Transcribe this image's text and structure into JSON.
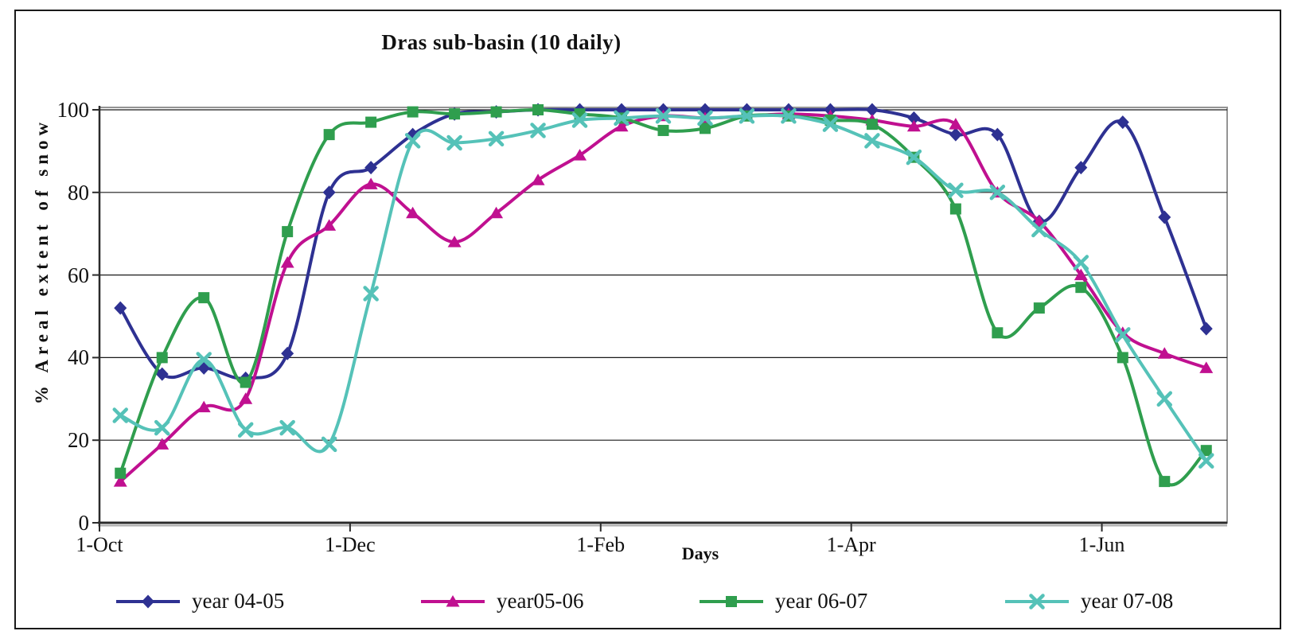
{
  "window": {
    "background": "#ffffff",
    "border_color": "#1a1a1a"
  },
  "chart_data": {
    "type": "line",
    "title": "Dras sub-basin (10 daily)",
    "xlabel": "Days",
    "ylabel": "% Areal extent of snow",
    "ylim": [
      0,
      100
    ],
    "y_ticks": [
      0,
      20,
      40,
      60,
      80,
      100
    ],
    "grid": true,
    "line_style": "smooth",
    "legend_position": "bottom",
    "categories": [
      "1-Oct",
      "11-Oct",
      "21-Oct",
      "1-Nov",
      "11-Nov",
      "21-Nov",
      "1-Dec",
      "11-Dec",
      "21-Dec",
      "1-Jan",
      "11-Jan",
      "21-Jan",
      "1-Feb",
      "11-Feb",
      "21-Feb",
      "1-Mar",
      "11-Mar",
      "21-Mar",
      "1-Apr",
      "11-Apr",
      "21-Apr",
      "1-May",
      "11-May",
      "21-May",
      "1-Jun",
      "11-Jun",
      "21-Jun"
    ],
    "x_tick_labels": [
      "1-Oct",
      "1-Dec",
      "1-Feb",
      "1-Apr",
      "1-Jun"
    ],
    "x_tick_every": 6,
    "series": [
      {
        "name": "year 04-05",
        "color": "#2E3192",
        "marker": "diamond",
        "values": [
          52,
          36,
          37.5,
          35,
          41,
          80,
          86,
          94,
          99,
          99.5,
          100,
          100,
          100,
          100,
          100,
          100,
          100,
          100,
          100,
          98,
          94,
          94,
          73,
          86,
          97,
          74,
          47
        ]
      },
      {
        "name": "year05-06",
        "color": "#C01090",
        "marker": "triangle",
        "values": [
          10,
          19,
          28,
          30,
          63,
          72,
          82,
          75,
          68,
          75,
          83,
          89,
          96,
          98.5,
          98,
          98.5,
          99,
          98.5,
          97.5,
          96,
          96.5,
          80,
          73,
          60,
          46,
          41,
          37.5
        ]
      },
      {
        "name": "year 06-07",
        "color": "#2F9E4E",
        "marker": "square",
        "values": [
          12,
          40,
          54.5,
          34,
          70.5,
          94,
          97,
          99.5,
          99,
          99.5,
          100,
          99,
          98,
          95,
          95.5,
          98.5,
          98.5,
          97.5,
          96.5,
          88.5,
          76,
          46,
          52,
          57,
          40,
          10,
          17.5
        ]
      },
      {
        "name": "year 07-08",
        "color": "#55C2B8",
        "marker": "x",
        "values": [
          26,
          23,
          39.5,
          22.5,
          23,
          19,
          55.5,
          92.5,
          92,
          93,
          95,
          97.5,
          98,
          98.5,
          98,
          98.5,
          98.5,
          96.5,
          92.5,
          88.5,
          80.5,
          80,
          71,
          63,
          45.5,
          30,
          15
        ]
      }
    ],
    "style": {
      "gridline_color": "#1a1a1a",
      "plot_border_color": "#949494",
      "axis_color": "#2b2b2b"
    }
  }
}
